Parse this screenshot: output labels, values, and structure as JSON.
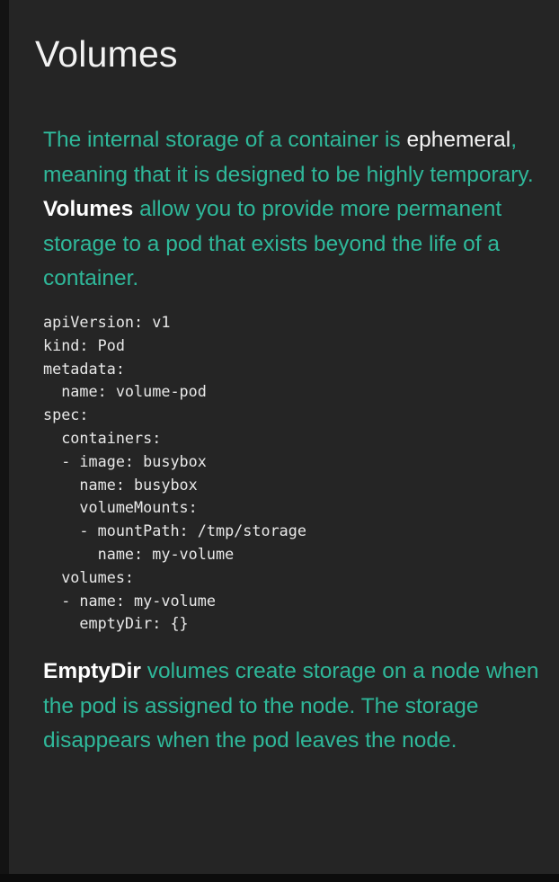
{
  "title": "Volumes",
  "intro": {
    "part1": "The internal storage of a container is ",
    "term_ephemeral": "ephemeral",
    "part2": ", meaning that it is designed to be highly temporary. ",
    "term_volumes": "Volumes",
    "part3": " allow you to provide more permanent storage to a pod that exists beyond the life of a container."
  },
  "code_lines": [
    "apiVersion: v1",
    "kind: Pod",
    "metadata:",
    "  name: volume-pod",
    "spec:",
    "  containers:",
    "  - image: busybox",
    "    name: busybox",
    "    volumeMounts:",
    "    - mountPath: /tmp/storage",
    "      name: my-volume",
    "  volumes:",
    "  - name: my-volume",
    "    emptyDir: {}"
  ],
  "emptydir": {
    "term": "EmptyDir",
    "text": " volumes create storage on a node when the pod is assigned to the node. The storage disappears when the pod leaves the node."
  },
  "colors": {
    "background": "#252525",
    "accent_teal": "#2fb89a",
    "text_white": "#f2f2f2"
  }
}
